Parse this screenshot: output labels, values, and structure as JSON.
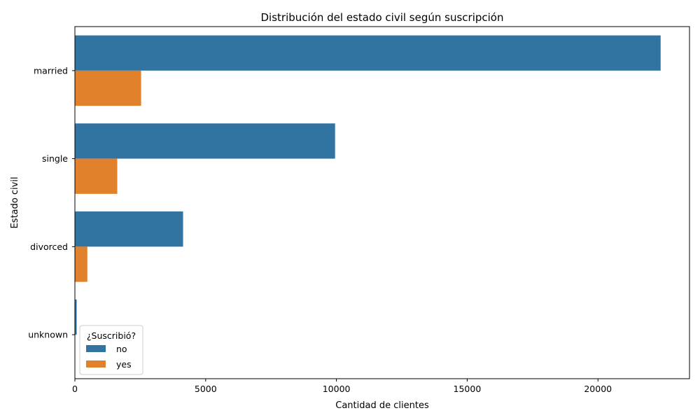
{
  "chart_data": {
    "type": "bar",
    "orientation": "horizontal",
    "title": "Distribución del estado civil según suscripción",
    "xlabel": "Cantidad de clientes",
    "ylabel": "Estado civil",
    "categories": [
      "married",
      "single",
      "divorced",
      "unknown"
    ],
    "series": [
      {
        "name": "no",
        "color": "#3274a1",
        "values": [
          22396,
          9948,
          4136,
          68
        ]
      },
      {
        "name": "yes",
        "color": "#e1812c",
        "values": [
          2532,
          1620,
          476,
          12
        ]
      }
    ],
    "xlim": [
      0,
      23500
    ],
    "xticks": [
      0,
      5000,
      10000,
      15000,
      20000
    ],
    "grid": false,
    "legend": {
      "title": "¿Suscribió?",
      "placement": "lower-left"
    }
  }
}
